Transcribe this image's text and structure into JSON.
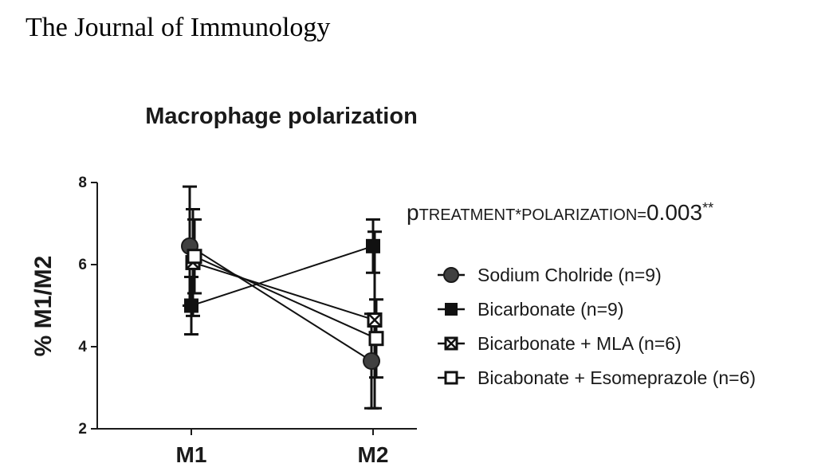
{
  "header": {
    "journal": "The Journal of Immunology"
  },
  "chart_data": {
    "type": "line",
    "title": "Macrophage polarization",
    "xlabel": "",
    "ylabel": "% M1/M2",
    "categories": [
      "M1",
      "M2"
    ],
    "ylim": [
      2,
      8
    ],
    "yticks": [
      2,
      4,
      6,
      8
    ],
    "grid": false,
    "legend_position": "right",
    "annotation": {
      "p": "p",
      "subscript": "TREATMENT*POLARIZATION=",
      "value": "0.003",
      "stars": "**"
    },
    "series": [
      {
        "name": "Sodium Cholride (n=9)",
        "marker": "circle-filled",
        "color": "#3a3a3a",
        "values": [
          6.45,
          3.65
        ],
        "errors": [
          1.45,
          1.15
        ]
      },
      {
        "name": "Bicarbonate (n=9)",
        "marker": "square-filled",
        "color": "#111111",
        "values": [
          5.0,
          6.45
        ],
        "errors": [
          0.7,
          0.65
        ]
      },
      {
        "name": "Bicarbonate + MLA (n=6)",
        "marker": "square-crossed",
        "color": "#111111",
        "values": [
          6.05,
          4.65
        ],
        "errors": [
          1.3,
          2.15
        ]
      },
      {
        "name": "Bicabonate + Esomeprazole (n=6)",
        "marker": "square-open",
        "color": "#111111",
        "values": [
          6.2,
          4.2
        ],
        "errors": [
          0.9,
          0.95
        ]
      }
    ]
  }
}
